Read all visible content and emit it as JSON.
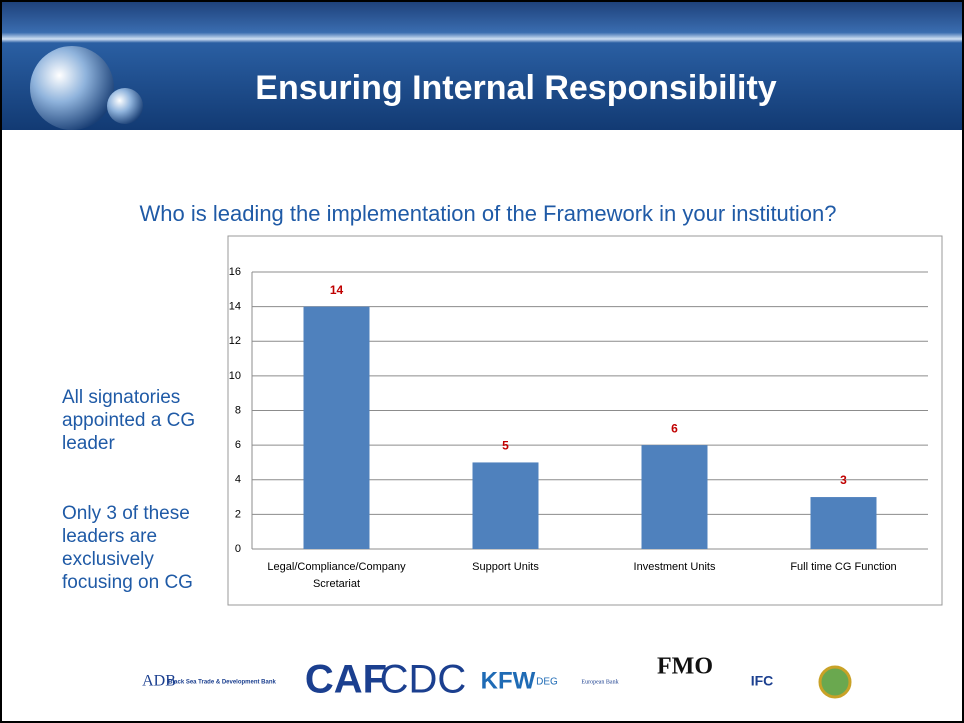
{
  "header": {
    "title": "Ensuring Internal Responsibility"
  },
  "question": "Who is leading the implementation of the Framework in your institution?",
  "notes": [
    "All signatories appointed a CG leader",
    "Only 3 of these leaders are exclusively focusing on CG"
  ],
  "chart_data": {
    "type": "bar",
    "categories": [
      "Legal/Compliance/Company Scretariat",
      "Support Units",
      "Investment Units",
      "Full time CG Function"
    ],
    "values": [
      14,
      5,
      6,
      3
    ],
    "color": "#4f81bd",
    "label_color": "#c00000",
    "ylim": [
      0,
      16
    ],
    "yticks": [
      0,
      2,
      4,
      6,
      8,
      10,
      12,
      14,
      16
    ],
    "grid": true
  },
  "logos": [
    "ADB",
    "Black Sea Trade & Development Bank",
    "CAF",
    "CDC",
    "KFW",
    "DEG",
    "European Bank",
    "FMO",
    "IFC"
  ]
}
